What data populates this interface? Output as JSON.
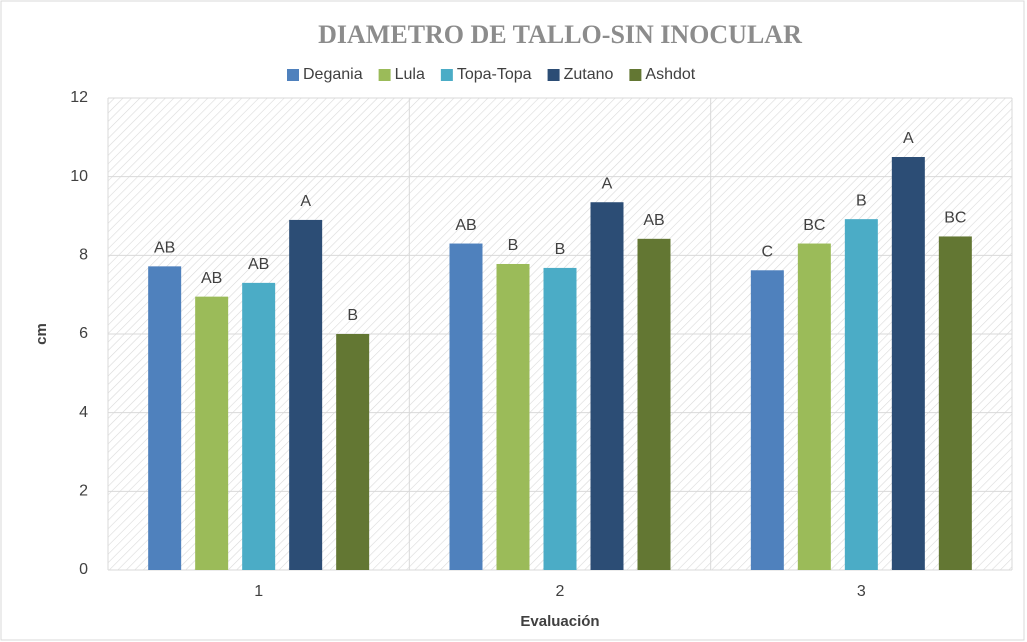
{
  "chart_data": {
    "type": "bar",
    "title": "DIAMETRO DE TALLO-SIN INOCULAR",
    "x_label": "Evaluación",
    "y_label": "cm",
    "categories": [
      "1",
      "2",
      "3"
    ],
    "series": [
      {
        "name": "Degania",
        "color": "#4f81bd",
        "values": [
          7.72,
          8.3,
          7.62
        ],
        "letters": [
          "AB",
          "AB",
          "C"
        ]
      },
      {
        "name": "Lula",
        "color": "#9bbb59",
        "values": [
          6.95,
          7.78,
          8.3
        ],
        "letters": [
          "AB",
          "B",
          "BC"
        ]
      },
      {
        "name": "Topa-Topa",
        "color": "#4bacc6",
        "values": [
          7.3,
          7.68,
          8.92
        ],
        "letters": [
          "AB",
          "B",
          "B"
        ]
      },
      {
        "name": "Zutano",
        "color": "#2c4d75",
        "values": [
          8.9,
          9.35,
          10.5
        ],
        "letters": [
          "A",
          "A",
          "A"
        ]
      },
      {
        "name": "Ashdot",
        "color": "#637733",
        "values": [
          6.0,
          8.42,
          8.48
        ],
        "letters": [
          "B",
          "AB",
          "BC"
        ]
      }
    ],
    "ylim": [
      0,
      12
    ],
    "yticks": [
      0,
      2,
      4,
      6,
      8,
      10,
      12
    ],
    "grid": true,
    "legend": "top"
  }
}
